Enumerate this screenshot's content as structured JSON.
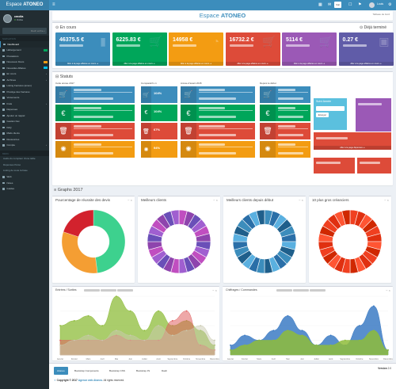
{
  "brand": {
    "prefix": "Espace",
    "name": "ATONEO"
  },
  "user": {
    "name": "cmolia",
    "status": "Online"
  },
  "search": {
    "placeholder": "Rech erche..."
  },
  "sidebar": {
    "header_main": "NAVIGATION",
    "items": [
      {
        "label": "Dashboard",
        "active": true
      },
      {
        "label": "Hébergement",
        "badge": "#00a65a"
      },
      {
        "label": "Prestations"
      },
      {
        "label": "Nouveaux Devis",
        "badge": "#f39c12"
      },
      {
        "label": "Nouvelles Affaires",
        "badge": "#00c0ef"
      },
      {
        "label": "En cours",
        "chev": true
      },
      {
        "label": "Archives",
        "chev": true
      },
      {
        "label": "Listing Factures (amex)"
      },
      {
        "label": "Prestige des Factures"
      },
      {
        "label": "Versements"
      },
      {
        "label": "Frais",
        "chev": true
      },
      {
        "label": "Dépenses"
      },
      {
        "label": "Ajouter un rappel"
      },
      {
        "label": "Gestion Fax"
      },
      {
        "label": "FAQ"
      },
      {
        "label": "Mails clients"
      },
      {
        "label": "Ressources"
      },
      {
        "label": "Compte",
        "chev": true
      }
    ],
    "header_other": "MENU",
    "sub": [
      "Audio du compteur d'une table",
      "Dépenses Perso",
      "Listing de toute la base"
    ],
    "bottom": [
      {
        "label": "Web"
      },
      {
        "label": "Notes"
      },
      {
        "label": "Guides"
      }
    ]
  },
  "topbar": {
    "btn_label": "Voir",
    "user": "Louis"
  },
  "page": {
    "title_prefix": "Espace",
    "title_name": "ATONEO",
    "sub": "Tableau de bord"
  },
  "encours": {
    "title": "En cours",
    "done": "Déjà terminé",
    "footer": "Aller à la page affaires en cours ➜",
    "boxes": [
      {
        "value": "46375.5 €",
        "color": "#3c8dbc",
        "icon": "bar-chart-icon"
      },
      {
        "value": "6225.83 €",
        "color": "#00a65a",
        "icon": "cart-icon"
      },
      {
        "value": "14958 €",
        "color": "#f39c12",
        "icon": "gauge-icon"
      },
      {
        "value": "16732.2 €",
        "color": "#dd4b39",
        "icon": "cart-icon"
      },
      {
        "value": "5114 €",
        "color": "#9b59b6",
        "icon": "cart-icon"
      },
      {
        "value": "0.27 €",
        "color": "#605ca8",
        "icon": "briefcase-icon"
      }
    ]
  },
  "stats": {
    "title": "Statuts",
    "col_heads": [
      "Cette année 2017",
      "Comparatif n-1",
      "Année d'avant 2015",
      "Depuis le début"
    ],
    "rows": [
      {
        "color": "#3c8dbc",
        "icon": "cart-icon"
      },
      {
        "color": "#00a65a",
        "icon": "euro-icon"
      },
      {
        "color": "#dd4b39",
        "icon": "trash-icon"
      },
      {
        "color": "#f39c12",
        "icon": "spinner-icon"
      }
    ],
    "mid": [
      {
        "value": "104%"
      },
      {
        "value": "104%"
      },
      {
        "value": "67%"
      },
      {
        "value": "94%"
      }
    ],
    "side_title": "Suivi Année",
    "side_btn": "Envoyer",
    "right_foot": "Aller à la page dépenses ➜"
  },
  "graphs": {
    "title": "Graphs 2017",
    "donuts": [
      {
        "title": "Pourcentage de réussite des devis",
        "colors": [
          "#3dd18e",
          "#f49e33",
          "#d2222d"
        ],
        "values": [
          48,
          32,
          20
        ],
        "thin": false
      },
      {
        "title": "Meilleurs clients",
        "colors": [
          "#c04ec0",
          "#8e44ad",
          "#6a4fb8",
          "#a05fd0"
        ],
        "values": [
          25,
          25,
          25,
          25
        ],
        "thin": true
      },
      {
        "title": "Meilleurs clients depuis début",
        "colors": [
          "#3c8dbc",
          "#2a6fa8",
          "#5ab0e0",
          "#1f5f8b"
        ],
        "values": [
          25,
          25,
          25,
          25
        ],
        "thin": true
      },
      {
        "title": "10 plus gros créanciers",
        "colors": [
          "#f04020",
          "#e03010",
          "#ff5533",
          "#d02800"
        ],
        "values": [
          25,
          25,
          25,
          25
        ],
        "thin": true
      }
    ],
    "area1": {
      "title": "Entrées / Sorties",
      "months": [
        "Janvier",
        "Février",
        "Mars",
        "Avril",
        "Mai",
        "Juin",
        "Juillet",
        "Août",
        "Septembre",
        "Octobre",
        "Novembre",
        "Décembre"
      ],
      "s1": [
        6,
        7,
        8,
        6,
        12,
        9,
        5,
        9,
        6,
        7,
        5,
        2
      ],
      "s2": [
        2,
        3,
        4,
        3,
        5,
        4,
        3,
        6,
        4,
        5,
        6,
        3
      ],
      "s3": [
        3,
        3,
        3,
        3,
        4,
        3,
        3,
        3,
        7,
        9,
        2,
        1
      ]
    },
    "area2": {
      "title": "Chiffrages / Commandes",
      "months": [
        "Janvier",
        "Février",
        "Mars",
        "Avril",
        "Mai",
        "Juin",
        "Juillet",
        "Août",
        "Septembre",
        "Octobre",
        "Novembre",
        "Décembre"
      ],
      "s1": [
        2,
        4,
        3,
        5,
        8,
        5,
        2,
        4,
        2,
        6,
        10,
        1
      ],
      "s2": [
        1,
        2,
        3,
        3,
        5,
        4,
        2,
        2,
        3,
        3,
        5,
        1
      ]
    }
  },
  "footer": {
    "buttons": [
      "Atoneo",
      "Bootstrap Components",
      "Bootstrap CSS",
      "Bootstrap JS",
      "Dash"
    ],
    "copy_prefix": "Copyright © 2017",
    "copy_link": "Agence web Atoneo.",
    "copy_suffix": "All rights reserved.",
    "version_label": "Version",
    "version": "2.0"
  }
}
